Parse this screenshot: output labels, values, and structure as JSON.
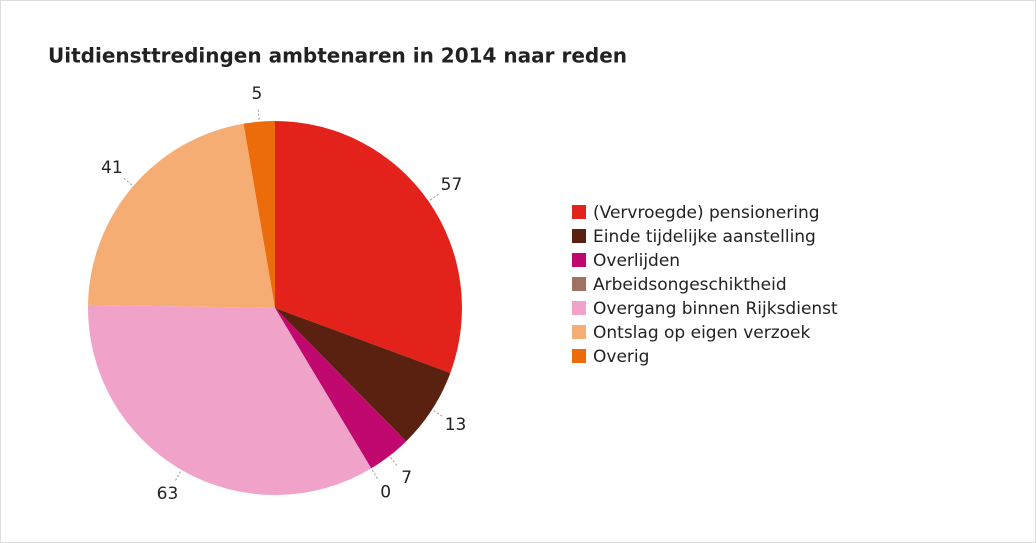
{
  "chart_data": {
    "type": "pie",
    "title": "Uitdiensttredingen ambtenaren in 2014 naar reden",
    "categories": [
      "(Vervroegde) pensionering",
      "Einde tijdelijke aanstelling",
      "Overlijden",
      "Arbeidsongeschiktheid",
      "Overgang binnen Rijksdienst",
      "Ontslag op eigen verzoek",
      "Overig"
    ],
    "values": [
      57,
      13,
      7,
      0,
      63,
      41,
      5
    ],
    "colors": [
      "#e3231b",
      "#5a2110",
      "#c0086f",
      "#a07262",
      "#f0a2c8",
      "#f6ad73",
      "#ec6b0a"
    ]
  }
}
